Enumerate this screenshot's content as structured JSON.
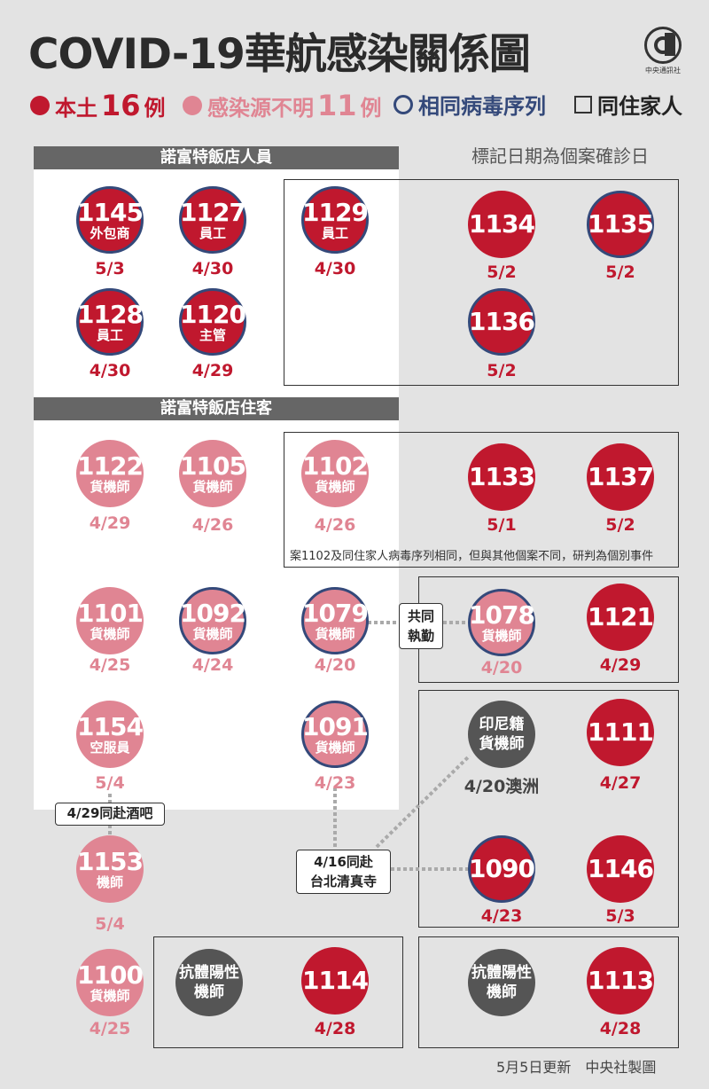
{
  "title": "COVID-19華航感染關係圖",
  "logo": {
    "mark": "CNA",
    "text": "中央通訊社"
  },
  "legend": {
    "local_label": "本土",
    "local_count": "16",
    "local_unit": "例",
    "unknown_label": "感染源不明",
    "unknown_count": "11",
    "unknown_unit": "例",
    "sequence_label": "相同病毒序列",
    "household_label": "同住家人"
  },
  "date_note": "標記日期為個案確診日",
  "sections": {
    "staff": "諾富特飯店人員",
    "guests": "諾富特飯店住客"
  },
  "colors": {
    "local": "#c0182e",
    "unknown": "#e08593",
    "sequence_ring": "#34497a",
    "antibody": "#555555"
  },
  "cases": {
    "c1145": {
      "num": "1145",
      "role": "外包商",
      "date": "5/3"
    },
    "c1127": {
      "num": "1127",
      "role": "員工",
      "date": "4/30"
    },
    "c1129": {
      "num": "1129",
      "role": "員工",
      "date": "4/30"
    },
    "c1134": {
      "num": "1134",
      "date": "5/2"
    },
    "c1135": {
      "num": "1135",
      "date": "5/2"
    },
    "c1128": {
      "num": "1128",
      "role": "員工",
      "date": "4/30"
    },
    "c1120": {
      "num": "1120",
      "role": "主管",
      "date": "4/29"
    },
    "c1136": {
      "num": "1136",
      "date": "5/2"
    },
    "c1122": {
      "num": "1122",
      "role": "貨機師",
      "date": "4/29"
    },
    "c1105": {
      "num": "1105",
      "role": "貨機師",
      "date": "4/26"
    },
    "c1102": {
      "num": "1102",
      "role": "貨機師",
      "date": "4/26"
    },
    "c1133": {
      "num": "1133",
      "date": "5/1"
    },
    "c1137": {
      "num": "1137",
      "date": "5/2"
    },
    "c1101": {
      "num": "1101",
      "role": "貨機師",
      "date": "4/25"
    },
    "c1092": {
      "num": "1092",
      "role": "貨機師",
      "date": "4/24"
    },
    "c1079": {
      "num": "1079",
      "role": "貨機師",
      "date": "4/20"
    },
    "c1078": {
      "num": "1078",
      "role": "貨機師",
      "date": "4/20"
    },
    "c1121": {
      "num": "1121",
      "date": "4/29"
    },
    "c1154": {
      "num": "1154",
      "role": "空服員",
      "date": "5/4"
    },
    "c1091": {
      "num": "1091",
      "role": "貨機師",
      "date": "4/23"
    },
    "cindo": {
      "line1": "印尼籍",
      "line2": "貨機師",
      "date": "4/20澳洲"
    },
    "c1111": {
      "num": "1111",
      "date": "4/27"
    },
    "c1153": {
      "num": "1153",
      "role": "機師",
      "date": "5/4"
    },
    "c1090": {
      "num": "1090",
      "date": "4/23"
    },
    "c1146": {
      "num": "1146",
      "date": "5/3"
    },
    "c1100": {
      "num": "1100",
      "role": "貨機師",
      "date": "4/25"
    },
    "anti1": {
      "line1": "抗體陽性",
      "line2": "機師"
    },
    "c1114": {
      "num": "1114",
      "date": "4/28"
    },
    "anti2": {
      "line1": "抗體陽性",
      "line2": "機師"
    },
    "c1113": {
      "num": "1113",
      "date": "4/28"
    }
  },
  "callouts": {
    "shared_duty": {
      "line1": "共同",
      "line2": "執勤"
    },
    "bar": "4/29同赴酒吧",
    "mosque": {
      "line1": "4/16同赴",
      "line2": "台北清真寺"
    }
  },
  "case_1102_note": "案1102及同住家人病毒序列相同，但與其他個案不同，研判為個別事件",
  "footer": "5月5日更新　中央社製圖"
}
